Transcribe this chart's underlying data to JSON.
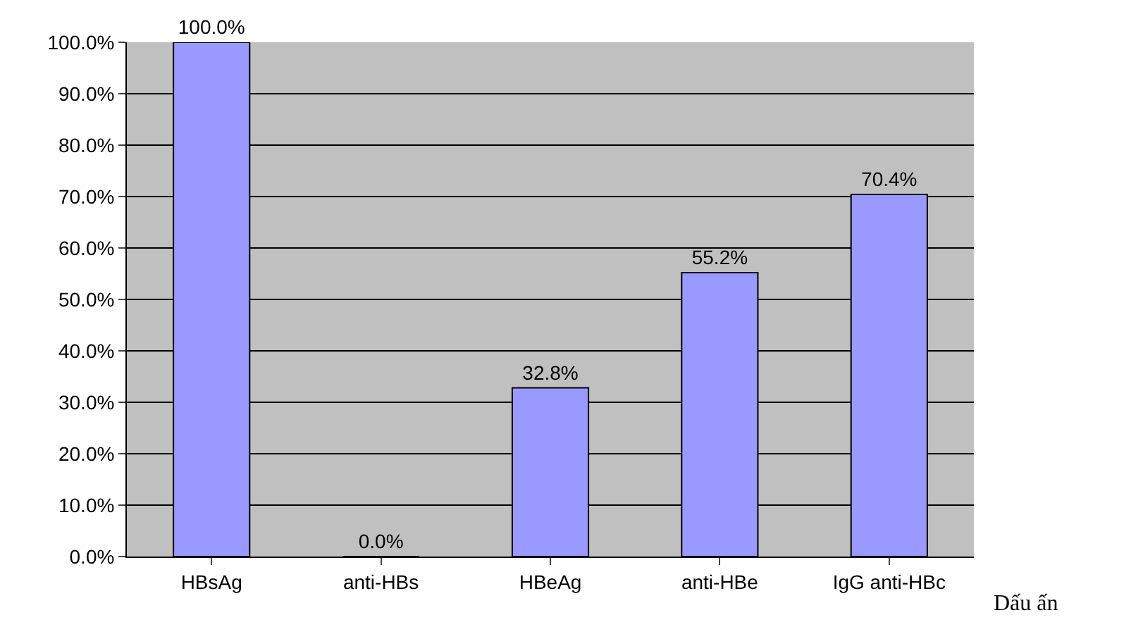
{
  "chart_data": {
    "type": "bar",
    "xlabel": "Dấu ấn",
    "categories": [
      "HBsAg",
      "anti-HBs",
      "HBeAg",
      "anti-HBe",
      "IgG anti-HBc"
    ],
    "values": [
      100.0,
      0.0,
      32.8,
      55.2,
      70.4
    ],
    "value_labels": [
      "100.0%",
      "0.0%",
      "32.8%",
      "55.2%",
      "70.4%"
    ],
    "color": "#9999ff",
    "ylim": [
      0,
      100
    ],
    "yticks": [
      {
        "value": 0,
        "label": "0.0%"
      },
      {
        "value": 10,
        "label": "10.0%"
      },
      {
        "value": 20,
        "label": "20.0%"
      },
      {
        "value": 30,
        "label": "30.0%"
      },
      {
        "value": 40,
        "label": "40.0%"
      },
      {
        "value": 50,
        "label": "50.0%"
      },
      {
        "value": 60,
        "label": "60.0%"
      },
      {
        "value": 70,
        "label": "70.0%"
      },
      {
        "value": 80,
        "label": "80.0%"
      },
      {
        "value": 90,
        "label": "90.0%"
      },
      {
        "value": 100,
        "label": "100.0%"
      }
    ],
    "grid": "y"
  }
}
